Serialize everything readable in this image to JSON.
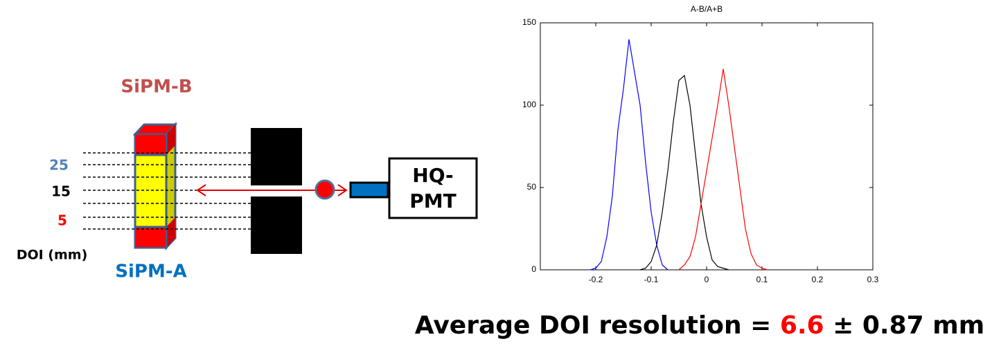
{
  "diagram": {
    "sipm_b": "SiPM-B",
    "sipm_a": "SiPM-A",
    "doi_25": "25",
    "doi_15": "15",
    "doi_5": "5",
    "doi_unit": "DOI (mm)",
    "pmt_line1": "HQ-",
    "pmt_line2": "PMT"
  },
  "chart_data": {
    "type": "line",
    "title": "A-B/A+B",
    "x": [
      -0.21,
      -0.2,
      -0.19,
      -0.18,
      -0.17,
      -0.16,
      -0.15,
      -0.14,
      -0.13,
      -0.12,
      -0.11,
      -0.1,
      -0.09,
      -0.08,
      -0.07,
      -0.06,
      -0.05,
      -0.04,
      -0.03,
      -0.02,
      -0.01,
      0,
      0.01,
      0.02,
      0.03,
      0.04,
      0.05,
      0.06,
      0.07,
      0.08,
      0.09,
      0.1,
      0.11,
      0.12
    ],
    "series": [
      {
        "color": "#0000ff",
        "values": [
          0,
          1,
          5,
          20,
          45,
          85,
          110,
          140,
          120,
          100,
          65,
          35,
          15,
          3,
          0,
          null,
          null,
          null,
          null,
          null,
          null,
          null,
          null,
          null,
          null,
          null,
          null,
          null,
          null,
          null,
          null,
          null,
          null,
          null
        ]
      },
      {
        "color": "#000000",
        "values": [
          null,
          null,
          null,
          null,
          null,
          null,
          null,
          null,
          null,
          0,
          1,
          5,
          15,
          35,
          60,
          90,
          115,
          118,
          100,
          70,
          40,
          20,
          6,
          2,
          1,
          0,
          null,
          null,
          null,
          null,
          null,
          null,
          null,
          null
        ]
      },
      {
        "color": "#ff0000",
        "values": [
          null,
          null,
          null,
          null,
          null,
          null,
          null,
          null,
          null,
          null,
          null,
          null,
          null,
          null,
          null,
          null,
          0,
          3,
          8,
          20,
          40,
          60,
          80,
          100,
          122,
          100,
          75,
          50,
          25,
          10,
          3,
          1,
          0,
          null
        ]
      }
    ],
    "xlim": [
      -0.3,
      0.3
    ],
    "xticks": [
      -0.2,
      -0.1,
      0,
      0.1,
      0.2,
      0.3
    ],
    "ylim": [
      0,
      150
    ],
    "yticks": [
      0,
      50,
      100,
      150
    ]
  },
  "caption": {
    "label": "Average DOI resolution =",
    "value": "6.6",
    "plusminus": "±",
    "error": "0.87 mm"
  }
}
